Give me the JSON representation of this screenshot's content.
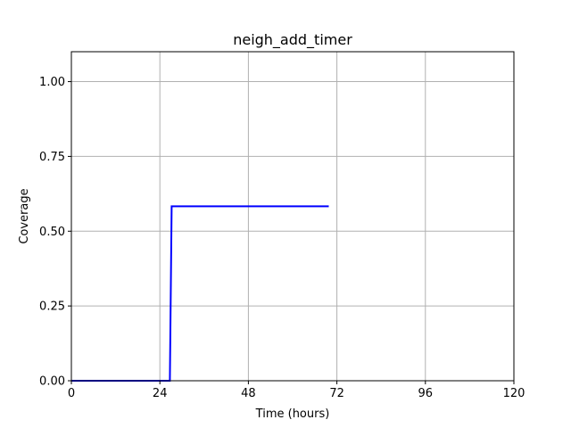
{
  "chart_data": {
    "type": "line",
    "title": "neigh_add_timer",
    "xlabel": "Time (hours)",
    "ylabel": "Coverage",
    "xlim": [
      0,
      120
    ],
    "ylim": [
      0,
      1.1
    ],
    "xticks": [
      0,
      24,
      48,
      72,
      96,
      120
    ],
    "xtick_labels": [
      "0",
      "24",
      "48",
      "72",
      "96",
      "120"
    ],
    "yticks": [
      0,
      0.25,
      0.5,
      0.75,
      1.0
    ],
    "ytick_labels": [
      "0.00",
      "0.25",
      "0.50",
      "0.75",
      "1.00"
    ],
    "grid": true,
    "series": [
      {
        "color": "#0000ff",
        "x": [
          0,
          26.7,
          27.2,
          69.8
        ],
        "y": [
          0,
          0,
          0.583,
          0.583
        ]
      }
    ]
  }
}
